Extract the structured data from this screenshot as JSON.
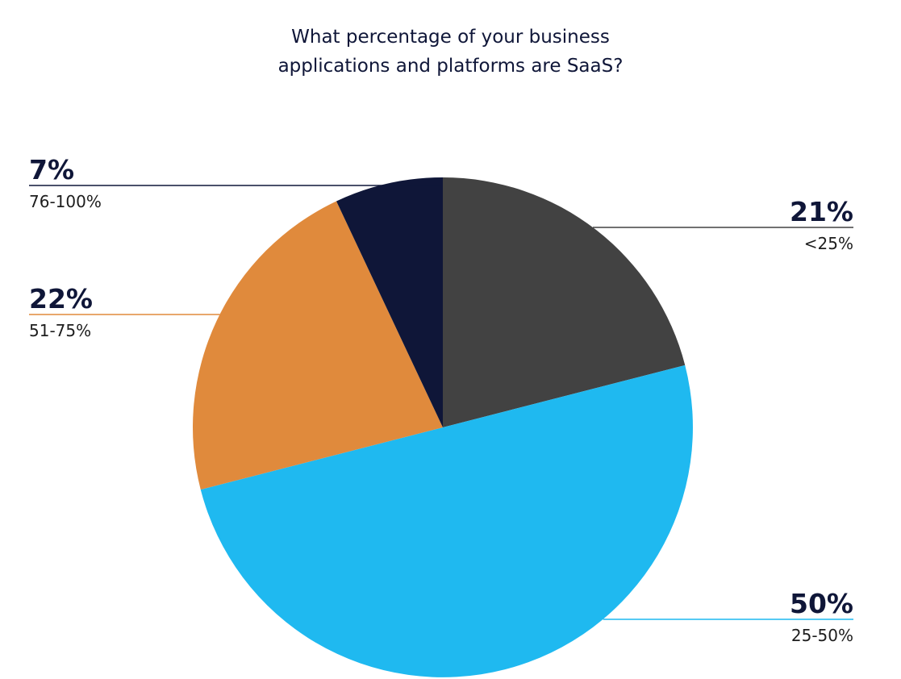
{
  "chart_data": {
    "type": "pie",
    "title_lines": [
      "What percentage of your business",
      "applications and platforms are SaaS?"
    ],
    "slices": [
      {
        "category": "<25%",
        "value": 21,
        "label": "21%",
        "color": "#424242",
        "leader_color": "#424242",
        "label_side": "right"
      },
      {
        "category": "25-50%",
        "value": 50,
        "label": "50%",
        "color": "#1fb9f0",
        "leader_color": "#1fb9f0",
        "label_side": "right"
      },
      {
        "category": "51-75%",
        "value": 22,
        "label": "22%",
        "color": "#e08a3c",
        "leader_color": "#e08a3c",
        "label_side": "left"
      },
      {
        "category": "76-100%",
        "value": 7,
        "label": "7%",
        "color": "#0f1638",
        "leader_color": "#0f1638",
        "label_side": "left"
      }
    ],
    "start_angle_deg": 0,
    "direction": "clockwise"
  }
}
